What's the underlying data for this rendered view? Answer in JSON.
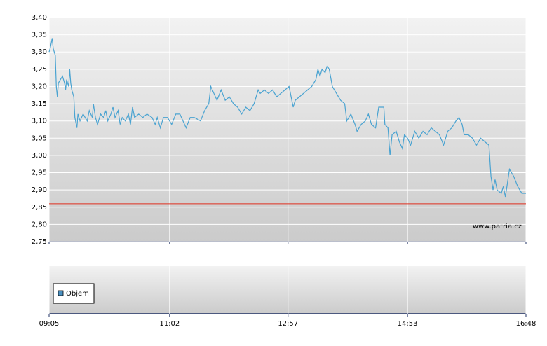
{
  "chart_data": {
    "type": "line",
    "color": "#4aa3d1",
    "x": [
      "09:05",
      "09:06",
      "09:08",
      "09:09",
      "09:11",
      "09:12",
      "09:13",
      "09:14",
      "09:16",
      "09:18",
      "09:20",
      "09:21",
      "09:22",
      "09:24",
      "09:25",
      "09:26",
      "09:27",
      "09:29",
      "09:30",
      "09:32",
      "09:33",
      "09:35",
      "09:38",
      "09:40",
      "09:42",
      "09:44",
      "09:47",
      "09:48",
      "09:50",
      "09:52",
      "09:55",
      "09:58",
      "10:00",
      "10:02",
      "10:05",
      "10:07",
      "10:09",
      "10:12",
      "10:14",
      "10:16",
      "10:19",
      "10:22",
      "10:24",
      "10:26",
      "10:28",
      "10:32",
      "10:36",
      "10:40",
      "10:45",
      "10:48",
      "10:50",
      "10:53",
      "10:56",
      "11:00",
      "11:04",
      "11:08",
      "11:12",
      "11:15",
      "11:18",
      "11:22",
      "11:26",
      "11:32",
      "11:36",
      "11:40",
      "11:42",
      "11:45",
      "11:48",
      "11:52",
      "11:56",
      "12:00",
      "12:04",
      "12:08",
      "12:12",
      "12:16",
      "12:20",
      "12:24",
      "12:28",
      "12:30",
      "12:34",
      "12:38",
      "12:42",
      "12:46",
      "12:50",
      "12:54",
      "12:58",
      "13:02",
      "13:04",
      "13:08",
      "13:12",
      "13:16",
      "13:20",
      "13:24",
      "13:26",
      "13:28",
      "13:30",
      "13:33",
      "13:35",
      "13:37",
      "13:40",
      "13:44",
      "13:48",
      "13:52",
      "13:54",
      "13:58",
      "14:02",
      "14:04",
      "14:08",
      "14:12",
      "14:15",
      "14:18",
      "14:22",
      "14:25",
      "14:30",
      "14:31",
      "14:34",
      "14:36",
      "14:38",
      "14:42",
      "14:45",
      "14:48",
      "14:50",
      "14:53",
      "14:56",
      "15:00",
      "15:04",
      "15:08",
      "15:12",
      "15:16",
      "15:20",
      "15:24",
      "15:28",
      "15:32",
      "15:36",
      "15:40",
      "15:43",
      "15:46",
      "15:48",
      "15:52",
      "15:56",
      "16:00",
      "16:04",
      "16:08",
      "16:12",
      "16:14",
      "16:16",
      "16:18",
      "16:20",
      "16:24",
      "16:26",
      "16:28",
      "16:32",
      "16:36",
      "16:40",
      "16:44",
      "16:48"
    ],
    "values": [
      3.3,
      3.31,
      3.34,
      3.31,
      3.29,
      3.2,
      3.17,
      3.21,
      3.22,
      3.23,
      3.21,
      3.19,
      3.22,
      3.2,
      3.25,
      3.21,
      3.19,
      3.17,
      3.11,
      3.08,
      3.12,
      3.1,
      3.12,
      3.11,
      3.1,
      3.13,
      3.11,
      3.15,
      3.11,
      3.09,
      3.12,
      3.11,
      3.13,
      3.1,
      3.12,
      3.14,
      3.11,
      3.13,
      3.09,
      3.11,
      3.1,
      3.12,
      3.09,
      3.14,
      3.11,
      3.12,
      3.11,
      3.12,
      3.11,
      3.09,
      3.11,
      3.08,
      3.11,
      3.11,
      3.09,
      3.12,
      3.12,
      3.1,
      3.08,
      3.11,
      3.11,
      3.1,
      3.13,
      3.15,
      3.2,
      3.18,
      3.16,
      3.19,
      3.16,
      3.17,
      3.15,
      3.14,
      3.12,
      3.14,
      3.13,
      3.15,
      3.19,
      3.18,
      3.19,
      3.18,
      3.19,
      3.17,
      3.18,
      3.19,
      3.2,
      3.14,
      3.16,
      3.17,
      3.18,
      3.19,
      3.2,
      3.22,
      3.25,
      3.23,
      3.25,
      3.24,
      3.26,
      3.25,
      3.2,
      3.18,
      3.16,
      3.15,
      3.1,
      3.12,
      3.09,
      3.07,
      3.09,
      3.1,
      3.12,
      3.09,
      3.08,
      3.14,
      3.14,
      3.09,
      3.08,
      3.0,
      3.06,
      3.07,
      3.04,
      3.02,
      3.06,
      3.05,
      3.03,
      3.07,
      3.05,
      3.07,
      3.06,
      3.08,
      3.07,
      3.06,
      3.03,
      3.07,
      3.08,
      3.1,
      3.11,
      3.09,
      3.06,
      3.06,
      3.05,
      3.03,
      3.05,
      3.04,
      3.03,
      2.94,
      2.9,
      2.93,
      2.9,
      2.89,
      2.91,
      2.88,
      2.96,
      2.94,
      2.91,
      2.89,
      2.89
    ],
    "xlim": [
      "09:05",
      "16:48"
    ],
    "xticks": [
      "09:05",
      "11:02",
      "12:57",
      "14:53",
      "16:48"
    ],
    "ylim": [
      2.75,
      3.4
    ],
    "yticks": [
      {
        "value": 2.75,
        "label": "2,75"
      },
      {
        "value": 2.8,
        "label": "2,80"
      },
      {
        "value": 2.85,
        "label": "2,85"
      },
      {
        "value": 2.9,
        "label": "2,90"
      },
      {
        "value": 2.95,
        "label": "2,95"
      },
      {
        "value": 3.0,
        "label": "3,00"
      },
      {
        "value": 3.05,
        "label": "3,05"
      },
      {
        "value": 3.1,
        "label": "3,10"
      },
      {
        "value": 3.15,
        "label": "3,15"
      },
      {
        "value": 3.2,
        "label": "3,20"
      },
      {
        "value": 3.25,
        "label": "3,25"
      },
      {
        "value": 3.3,
        "label": "3,30"
      },
      {
        "value": 3.35,
        "label": "3,35"
      },
      {
        "value": 3.4,
        "label": "3,40"
      }
    ],
    "grid": true,
    "reference_line": {
      "value": 2.86,
      "color": "#e03020"
    },
    "volume": {
      "name": "Objem",
      "color": "#4a90c0"
    },
    "source": "www.patria.cz"
  }
}
